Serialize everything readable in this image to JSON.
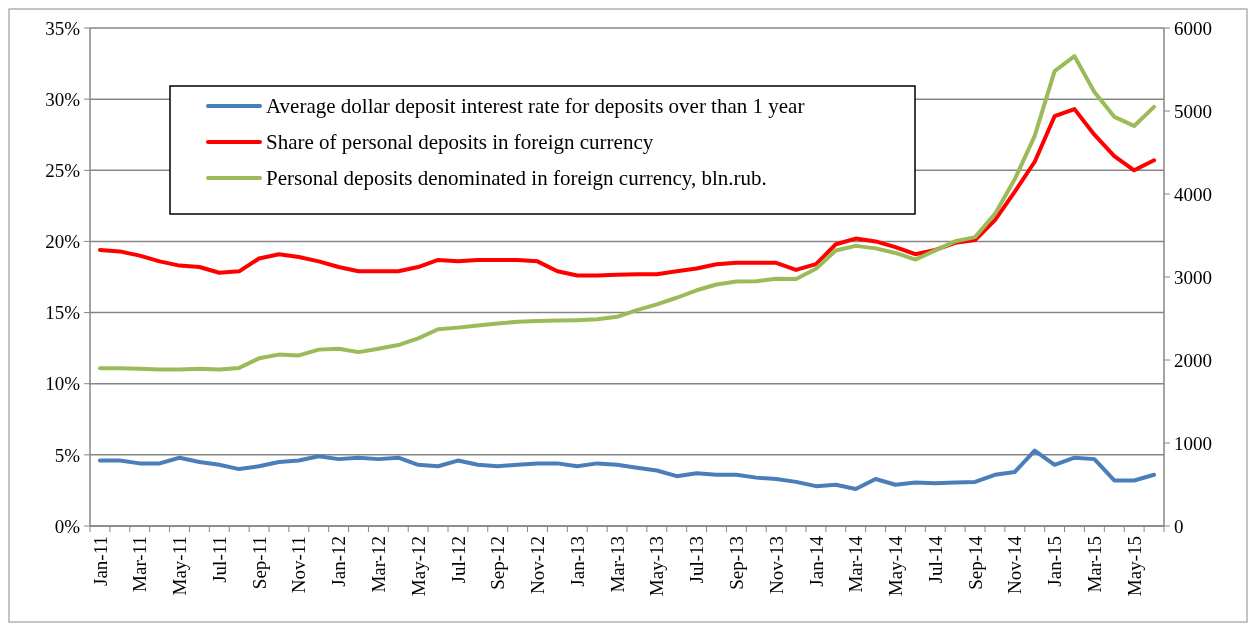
{
  "chart_data": {
    "type": "line",
    "categories": [
      "Jan-11",
      null,
      "Mar-11",
      null,
      "May-11",
      null,
      "Jul-11",
      null,
      "Sep-11",
      null,
      "Nov-11",
      null,
      "Jan-12",
      null,
      "Mar-12",
      null,
      "May-12",
      null,
      "Jul-12",
      null,
      "Sep-12",
      null,
      "Nov-12",
      null,
      "Jan-13",
      null,
      "Mar-13",
      null,
      "May-13",
      null,
      "Jul-13",
      null,
      "Sep-13",
      null,
      "Nov-13",
      null,
      "Jan-14",
      null,
      "Mar-14",
      null,
      "May-14",
      null,
      "Jul-14",
      null,
      "Sep-14",
      null,
      "Nov-14",
      null,
      "Jan-15",
      null,
      "Mar-15",
      null,
      "May-15",
      null
    ],
    "series": [
      {
        "name": "Average dollar deposit interest rate for deposits over than 1 year",
        "color": "#4a7ebb",
        "values": [
          4.6,
          4.6,
          4.4,
          4.4,
          4.8,
          4.5,
          4.3,
          4.0,
          4.2,
          4.5,
          4.6,
          4.9,
          4.7,
          4.8,
          4.7,
          4.8,
          4.3,
          4.2,
          4.6,
          4.3,
          4.2,
          4.3,
          4.4,
          4.4,
          4.2,
          4.4,
          4.3,
          4.1,
          3.9,
          3.5,
          3.7,
          3.6,
          3.6,
          3.4,
          3.3,
          3.1,
          2.8,
          2.9,
          2.6,
          3.3,
          2.9,
          3.05,
          3.0,
          3.05,
          3.1,
          3.6,
          3.8,
          5.3,
          4.3,
          4.8,
          4.7,
          3.2,
          3.2,
          3.6
        ]
      },
      {
        "name": "Share of personal deposits in foreign currency",
        "color": "#ff0000",
        "values": [
          19.4,
          19.3,
          19.0,
          18.6,
          18.3,
          18.2,
          17.8,
          17.9,
          18.8,
          19.1,
          18.9,
          18.6,
          18.2,
          17.9,
          17.9,
          17.9,
          18.2,
          18.7,
          18.6,
          18.7,
          18.7,
          18.7,
          18.6,
          17.9,
          17.6,
          17.6,
          17.65,
          17.7,
          17.7,
          17.9,
          18.1,
          18.4,
          18.5,
          18.5,
          18.5,
          18.0,
          18.4,
          19.8,
          20.2,
          20.0,
          19.6,
          19.1,
          19.4,
          19.9,
          20.1,
          21.5,
          23.5,
          25.6,
          28.8,
          29.3,
          27.5,
          26.0,
          25.0,
          25.7
        ]
      },
      {
        "name": "Personal deposits denominated in foreign currency, bln.rub.",
        "color": "#9bbb59",
        "axis": "y2",
        "values": [
          1900,
          1900,
          1895,
          1885,
          1885,
          1895,
          1885,
          1905,
          2020,
          2065,
          2055,
          2125,
          2135,
          2095,
          2135,
          2180,
          2260,
          2370,
          2390,
          2415,
          2440,
          2460,
          2470,
          2475,
          2480,
          2490,
          2520,
          2600,
          2670,
          2750,
          2840,
          2910,
          2945,
          2950,
          2980,
          2975,
          3100,
          3320,
          3375,
          3345,
          3290,
          3210,
          3320,
          3430,
          3480,
          3760,
          4180,
          4700,
          5480,
          5660,
          5230,
          4930,
          4820,
          5050
        ]
      }
    ],
    "ylim": [
      0,
      35
    ],
    "yticks": [
      {
        "value": 0,
        "label": "0%"
      },
      {
        "value": 5,
        "label": "5%"
      },
      {
        "value": 10,
        "label": "10%"
      },
      {
        "value": 15,
        "label": "15%"
      },
      {
        "value": 20,
        "label": "20%"
      },
      {
        "value": 25,
        "label": "25%"
      },
      {
        "value": 30,
        "label": "30%"
      },
      {
        "value": 35,
        "label": "35%"
      }
    ],
    "y2lim": [
      0,
      6000
    ],
    "y2ticks": [
      0,
      1000,
      2000,
      3000,
      4000,
      5000,
      6000
    ],
    "grid": "y",
    "legend": "top left",
    "marker": "none",
    "line_style": "solid"
  }
}
